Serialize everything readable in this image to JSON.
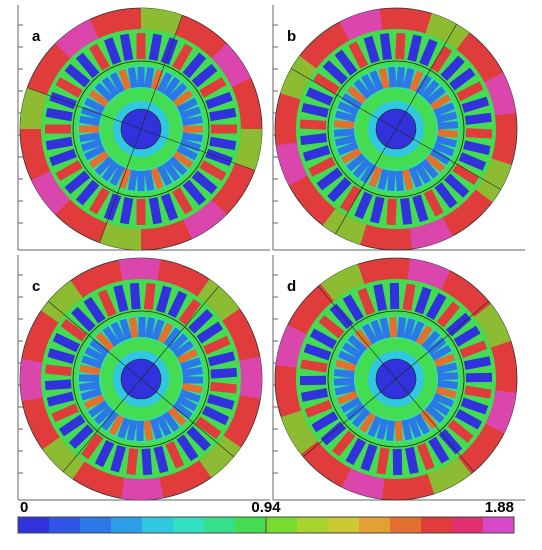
{
  "panels": [
    {
      "label": "a"
    },
    {
      "label": "b"
    },
    {
      "label": "c"
    },
    {
      "label": "d"
    }
  ],
  "colorbar": {
    "lim": [
      0,
      1.88
    ],
    "ticks": [
      0,
      0.94,
      1.88
    ],
    "colors": [
      "#3232dc",
      "#2f55e6",
      "#2c78e8",
      "#2c9ee8",
      "#30c8e0",
      "#30e0c0",
      "#34e08c",
      "#44dc50",
      "#78dc30",
      "#a8d430",
      "#cec832",
      "#e4a030",
      "#e47030",
      "#e03c3c",
      "#e03070",
      "#d848c8"
    ]
  }
}
